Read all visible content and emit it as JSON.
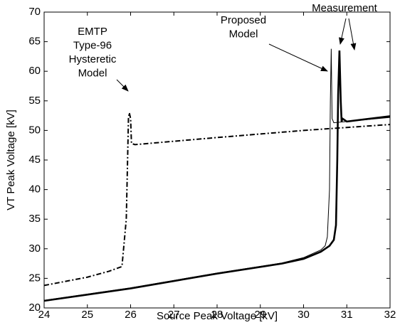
{
  "chart_data": {
    "type": "line",
    "xlabel": "Source Peak Voltage [kV]",
    "ylabel": "VT Peak Voltage [kV]",
    "xlim": [
      24,
      32
    ],
    "xticks": [
      24,
      25,
      26,
      27,
      28,
      29,
      30,
      31,
      32
    ],
    "ylim": [
      20,
      70
    ],
    "yticks": [
      20,
      25,
      30,
      35,
      40,
      45,
      50,
      55,
      60,
      65,
      70
    ],
    "annotations": [
      {
        "lines": [
          "EMTP",
          "Type-96",
          "Hysteretic",
          "Model"
        ]
      },
      {
        "lines": [
          "Proposed",
          "Model"
        ]
      },
      {
        "lines": [
          "Measurement"
        ]
      }
    ],
    "series": [
      {
        "color": "#000000",
        "width": 2.6,
        "dash": "none",
        "x": [
          24,
          26,
          28,
          29.5,
          30,
          30.4,
          30.6,
          30.7,
          30.75,
          30.78,
          30.8,
          30.83,
          30.86,
          30.88,
          30.9,
          31,
          32
        ],
        "values": [
          21.2,
          23.3,
          25.8,
          27.5,
          28.3,
          29.5,
          30.5,
          31.5,
          34,
          45,
          56,
          63.5,
          55,
          51.5,
          52,
          51.5,
          52.4
        ]
      },
      {
        "color": "#000000",
        "width": 1,
        "dash": "none",
        "x": [
          24,
          26,
          28,
          29.5,
          30,
          30.4,
          30.5,
          30.55,
          30.6,
          30.62,
          30.64,
          30.66,
          30.7,
          31,
          32
        ],
        "values": [
          21.3,
          23.4,
          25.9,
          27.6,
          28.5,
          29.8,
          30.5,
          32,
          40,
          55,
          63.8,
          52,
          51.3,
          51.5,
          52.2
        ]
      },
      {
        "color": "#000000",
        "width": 2,
        "dash": "7 3 2 3",
        "x": [
          24,
          25,
          25.5,
          25.8,
          25.9,
          25.93,
          25.95,
          25.97,
          26,
          26.02,
          26.1,
          28,
          30,
          32
        ],
        "values": [
          23.8,
          25.2,
          26.2,
          27,
          35,
          45,
          52,
          53,
          52,
          47.8,
          47.6,
          48.8,
          50,
          51
        ]
      }
    ]
  }
}
